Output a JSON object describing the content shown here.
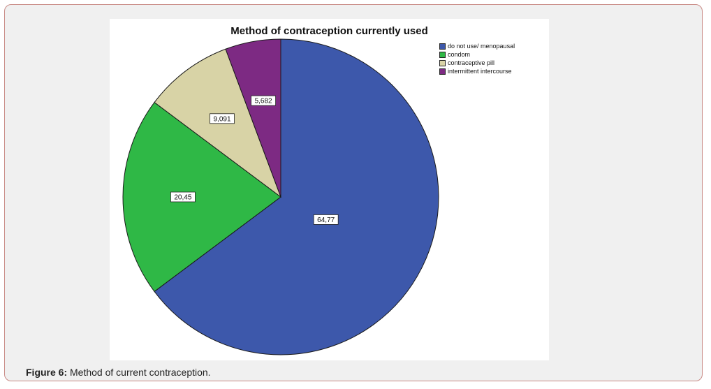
{
  "figure": {
    "label": "Figure 6:",
    "caption": " Method of current contraception."
  },
  "chart_data": {
    "type": "pie",
    "title": "Method of contraception currently used",
    "legend_position": "top-right",
    "slices": [
      {
        "name": "do not use/ menopausal",
        "value": 64.77,
        "label": "64,77",
        "color": "#3d58ab"
      },
      {
        "name": "condom",
        "value": 20.45,
        "label": "20,45",
        "color": "#2fb846"
      },
      {
        "name": "contraceptive pill",
        "value": 9.091,
        "label": "9,091",
        "color": "#d8d3a6"
      },
      {
        "name": "intermittent intercourse",
        "value": 5.682,
        "label": "5,682",
        "color": "#7d2a83"
      }
    ]
  }
}
